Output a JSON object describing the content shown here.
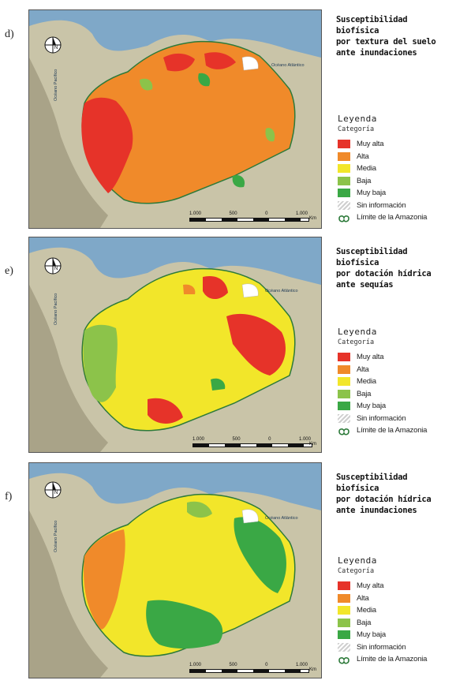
{
  "panels": [
    {
      "letter": "d)",
      "title_lines": [
        "Susceptibilidad biofísica",
        "por textura del suelo",
        "ante inundaciones"
      ]
    },
    {
      "letter": "e)",
      "title_lines": [
        "Susceptibilidad biofísica",
        "por dotación hídrica",
        "ante sequías"
      ]
    },
    {
      "letter": "f)",
      "title_lines": [
        "Susceptibilidad biofísica",
        "por dotación hídrica",
        "ante inundaciones"
      ]
    }
  ],
  "legend": {
    "title": "Leyenda",
    "subtitle": "Categoría",
    "items": [
      {
        "label": "Muy alta",
        "color": "#e63329"
      },
      {
        "label": "Alta",
        "color": "#f08a2a"
      },
      {
        "label": "Media",
        "color": "#f2e62a"
      },
      {
        "label": "Baja",
        "color": "#8cc34a"
      },
      {
        "label": "Muy baja",
        "color": "#3aa845"
      },
      {
        "label": "Sin información",
        "icon": "hatch-swatch"
      },
      {
        "label": "Límite de la Amazonia",
        "icon": "boundary-outline-icon"
      }
    ]
  },
  "map": {
    "ocean_atlantic": "Océano Atlántico",
    "ocean_pacific": "Océano Pacífico",
    "scale_labels": [
      "1.000",
      "500",
      "0",
      "1.000"
    ],
    "scale_unit": "Km",
    "compass_icon": "north-arrow-icon",
    "colors": {
      "ocean": "#7fa8c8",
      "land": "#c9c4a8",
      "land_dark": "#a9a388"
    }
  }
}
